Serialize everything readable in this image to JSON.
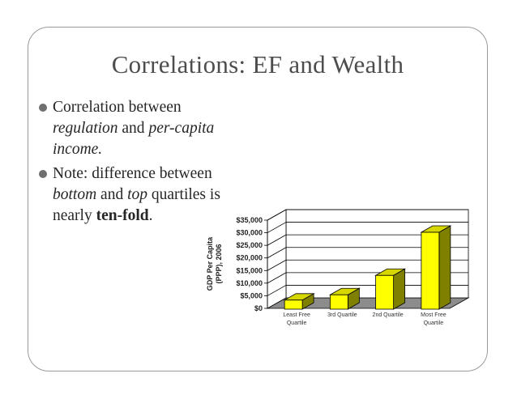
{
  "slide": {
    "title": "Correlations: EF and Wealth",
    "bullets": [
      {
        "lines": [
          [
            {
              "t": "Correlation between",
              "s": "n"
            }
          ],
          [
            {
              "t": "regulation",
              "s": "i"
            },
            {
              "t": " and ",
              "s": "n"
            },
            {
              "t": "per-capita",
              "s": "i"
            }
          ],
          [
            {
              "t": "income.",
              "s": "i"
            }
          ]
        ]
      },
      {
        "lines": [
          [
            {
              "t": "Note: difference between",
              "s": "n"
            }
          ],
          [
            {
              "t": "bottom",
              "s": "i"
            },
            {
              "t": " and ",
              "s": "n"
            },
            {
              "t": "top",
              "s": "i"
            },
            {
              "t": " quartiles is",
              "s": "n"
            }
          ],
          [
            {
              "t": "nearly ",
              "s": "n"
            },
            {
              "t": "ten-fold",
              "s": "b"
            },
            {
              "t": ".",
              "s": "n"
            }
          ]
        ]
      }
    ]
  },
  "chart_data": {
    "type": "bar",
    "categories": [
      [
        "Least Free",
        "Quartile"
      ],
      [
        "3rd Quartile"
      ],
      [
        "2nd Quartile"
      ],
      [
        "Most Free",
        "Quartile"
      ]
    ],
    "values": [
      3600,
      5700,
      13400,
      30500
    ],
    "ylabel": [
      "GDP Per Capita",
      "(PPP), 2006"
    ],
    "ylim": [
      0,
      35000
    ],
    "yticks": [
      0,
      5000,
      10000,
      15000,
      20000,
      25000,
      30000,
      35000
    ],
    "ytick_labels": [
      "$0",
      "$5,000",
      "$10,000",
      "$15,000",
      "$20,000",
      "$25,000",
      "$30,000",
      "$35,000"
    ],
    "grid": true,
    "style": "3d",
    "colors": {
      "front": "#ffff00",
      "side": "#808000",
      "top": "#d6d600",
      "floor": "#8c8c8c",
      "grid": "#000000"
    }
  }
}
